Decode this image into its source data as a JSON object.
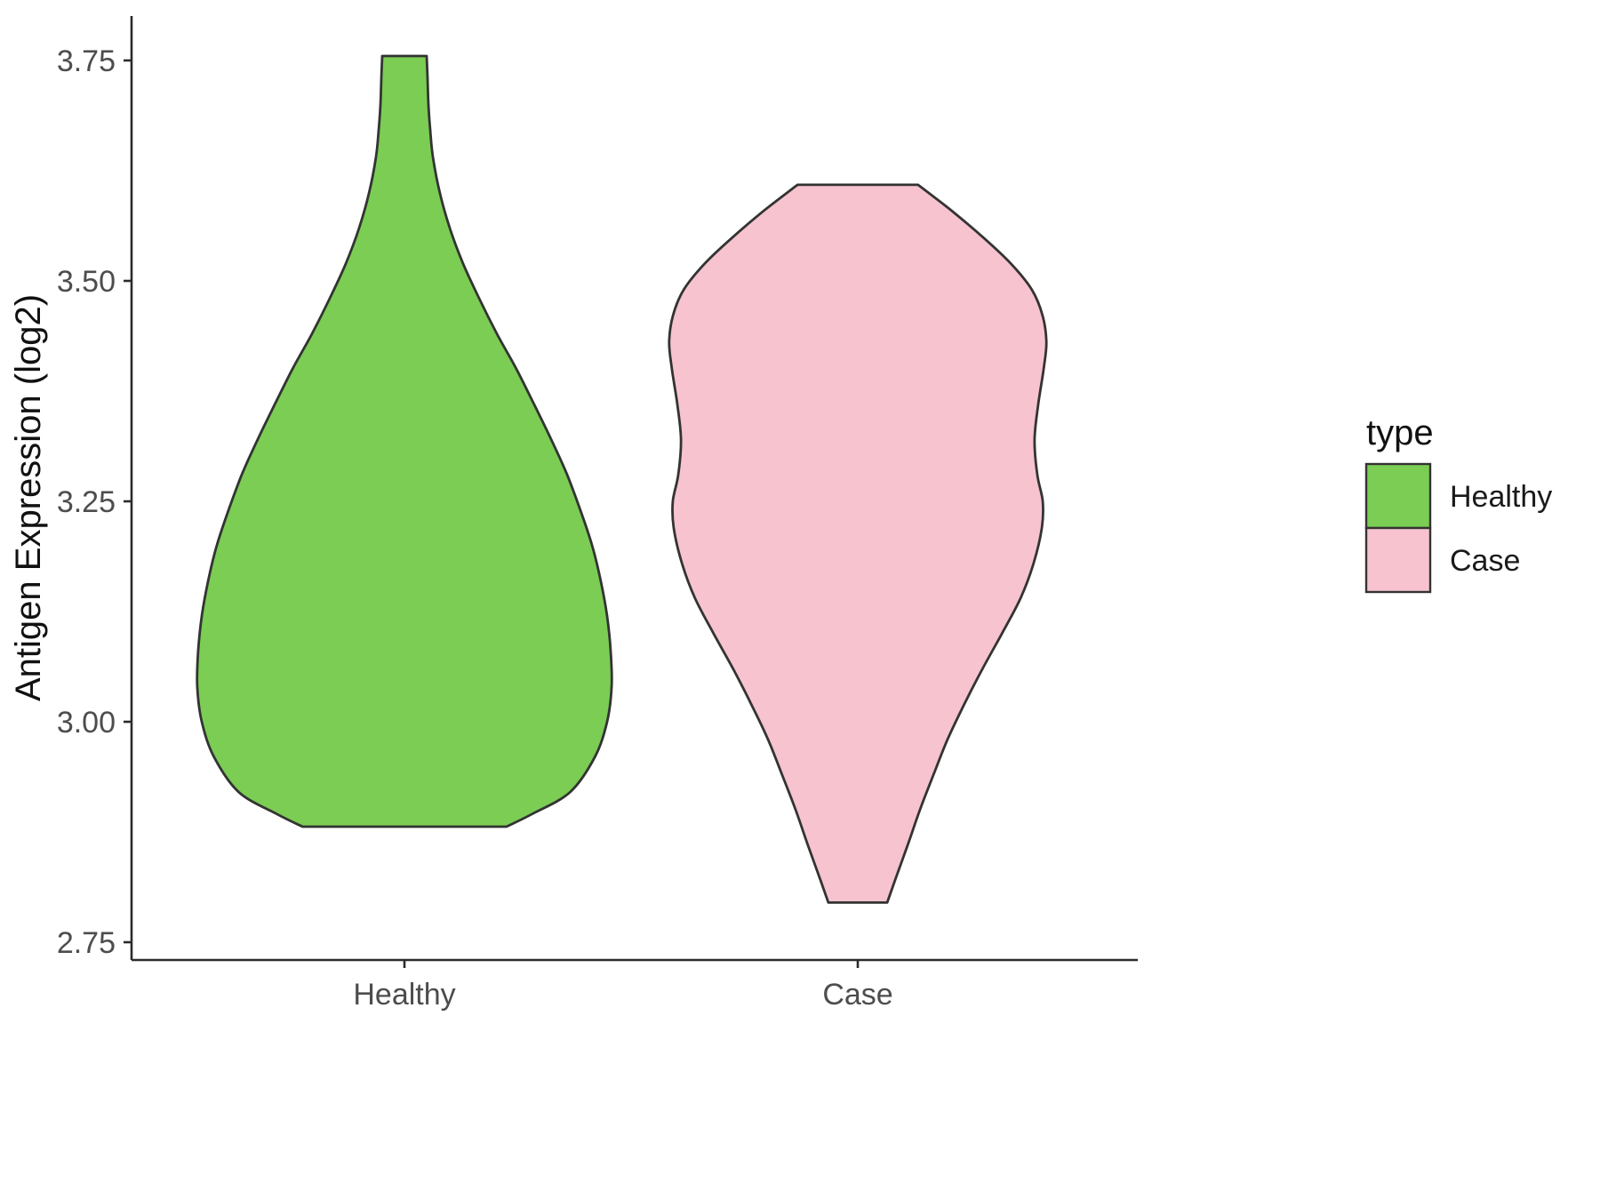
{
  "chart_data": {
    "type": "violin",
    "title": "",
    "xlabel": "",
    "ylabel": "Antigen Expression (log2)",
    "categories": [
      "Healthy",
      "Case"
    ],
    "y_ticks": [
      2.75,
      3.0,
      3.25,
      3.5,
      3.75
    ],
    "y_tick_labels": [
      "2.75",
      "3.00",
      "3.25",
      "3.50",
      "3.75"
    ],
    "ylim": [
      2.72,
      3.8
    ],
    "grid": "off",
    "legend": {
      "title": "type",
      "position": "right",
      "entries": [
        {
          "label": "Healthy",
          "color": "#7bcd54"
        },
        {
          "label": "Case",
          "color": "#f6c3cf"
        }
      ]
    },
    "colors": {
      "outline": "#333333",
      "axis_line": "#2b2b2b",
      "tick_text": "#4d4d4d",
      "title_text": "#111111"
    },
    "series": [
      {
        "name": "Healthy",
        "color": "#7bcd54",
        "y_min": 2.881,
        "y_max": 3.755,
        "profile": [
          {
            "y": 3.755,
            "w": 0.049
          },
          {
            "y": 3.73,
            "w": 0.051
          },
          {
            "y": 3.7,
            "w": 0.053
          },
          {
            "y": 3.67,
            "w": 0.057
          },
          {
            "y": 3.64,
            "w": 0.063
          },
          {
            "y": 3.6,
            "w": 0.078
          },
          {
            "y": 3.56,
            "w": 0.1
          },
          {
            "y": 3.52,
            "w": 0.129
          },
          {
            "y": 3.48,
            "w": 0.165
          },
          {
            "y": 3.44,
            "w": 0.204
          },
          {
            "y": 3.4,
            "w": 0.247
          },
          {
            "y": 3.36,
            "w": 0.286
          },
          {
            "y": 3.32,
            "w": 0.324
          },
          {
            "y": 3.28,
            "w": 0.359
          },
          {
            "y": 3.24,
            "w": 0.388
          },
          {
            "y": 3.2,
            "w": 0.414
          },
          {
            "y": 3.16,
            "w": 0.433
          },
          {
            "y": 3.12,
            "w": 0.447
          },
          {
            "y": 3.08,
            "w": 0.455
          },
          {
            "y": 3.04,
            "w": 0.457
          },
          {
            "y": 3.0,
            "w": 0.447
          },
          {
            "y": 2.96,
            "w": 0.42
          },
          {
            "y": 2.92,
            "w": 0.365
          },
          {
            "y": 2.895,
            "w": 0.28
          },
          {
            "y": 2.881,
            "w": 0.225
          }
        ]
      },
      {
        "name": "Case",
        "color": "#f6c3cf",
        "y_min": 2.795,
        "y_max": 3.609,
        "profile": [
          {
            "y": 3.609,
            "w": 0.133
          },
          {
            "y": 3.58,
            "w": 0.206
          },
          {
            "y": 3.55,
            "w": 0.275
          },
          {
            "y": 3.52,
            "w": 0.337
          },
          {
            "y": 3.49,
            "w": 0.384
          },
          {
            "y": 3.46,
            "w": 0.408
          },
          {
            "y": 3.43,
            "w": 0.416
          },
          {
            "y": 3.4,
            "w": 0.41
          },
          {
            "y": 3.36,
            "w": 0.398
          },
          {
            "y": 3.32,
            "w": 0.39
          },
          {
            "y": 3.28,
            "w": 0.396
          },
          {
            "y": 3.25,
            "w": 0.408
          },
          {
            "y": 3.22,
            "w": 0.406
          },
          {
            "y": 3.18,
            "w": 0.388
          },
          {
            "y": 3.14,
            "w": 0.359
          },
          {
            "y": 3.1,
            "w": 0.318
          },
          {
            "y": 3.06,
            "w": 0.275
          },
          {
            "y": 3.02,
            "w": 0.235
          },
          {
            "y": 2.98,
            "w": 0.198
          },
          {
            "y": 2.94,
            "w": 0.167
          },
          {
            "y": 2.9,
            "w": 0.137
          },
          {
            "y": 2.86,
            "w": 0.11
          },
          {
            "y": 2.82,
            "w": 0.082
          },
          {
            "y": 2.795,
            "w": 0.065
          }
        ]
      }
    ]
  }
}
